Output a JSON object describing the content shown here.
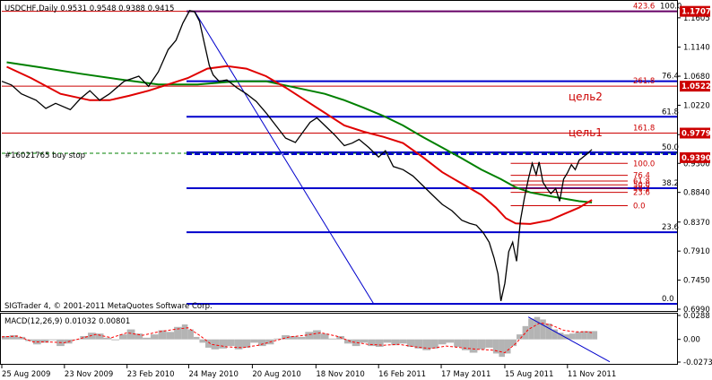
{
  "header": {
    "text": "USDCHF,Daily  0.9531 0.9548 0.9388 0.9415"
  },
  "order_label": "#16021765 buy stop",
  "copyright": "SIGTrader 4, © 2001-2011 MetaQuotes Software Corp.",
  "macd_label": "MACD(12,26,9) 0.01032 0.00801",
  "targets": [
    "цель2",
    "цель1"
  ],
  "colors": {
    "price": "#000000",
    "ma_red": "#e00000",
    "ma_green": "#008000",
    "level_blue": "#0000cc",
    "level_red": "#cc0000",
    "box_red": "#cc0000",
    "hist": "#b4b4b4",
    "signal": "#ff0000",
    "grid": "#000000"
  },
  "chart_data": {
    "type": "line",
    "title": "USDCHF,Daily",
    "ohlc_last": {
      "open": 0.9531,
      "high": 0.9548,
      "low": 0.9388,
      "close": 0.9415
    },
    "x_tick_labels": [
      "25 Aug 2009",
      "23 Nov 2009",
      "23 Feb 2010",
      "24 May 2010",
      "20 Aug 2010",
      "18 Nov 2010",
      "16 Feb 2011",
      "17 May 2011",
      "15 Aug 2011",
      "11 Nov 2011"
    ],
    "price_axis_labels": [
      "1.1605",
      "1.1140",
      "1.0680",
      "1.0220",
      "0.9755",
      "0.9300",
      "0.8840",
      "0.8370",
      "0.7910",
      "0.7450",
      "0.6990"
    ],
    "price_axis_values": [
      1.1605,
      1.114,
      1.068,
      1.022,
      0.9755,
      0.93,
      0.884,
      0.837,
      0.791,
      0.745,
      0.699
    ],
    "ylim": [
      0.699,
      1.183
    ],
    "x_range": [
      0,
      580
    ],
    "x_tick_index": [
      0,
      64,
      128,
      191,
      256,
      321,
      385,
      449,
      514,
      578
    ],
    "price_tags": [
      {
        "value": 1.1707,
        "text": "1.1707"
      },
      {
        "value": 1.0522,
        "text": "1.0522"
      },
      {
        "value": 0.9779,
        "text": "0.9779"
      },
      {
        "value": 0.939,
        "text": "0.9390"
      }
    ],
    "fib_main": {
      "levels": [
        {
          "label": "0.0",
          "value": 0.7075
        },
        {
          "label": "23.6",
          "value": 0.8208
        },
        {
          "label": "38.2",
          "value": 0.8906
        },
        {
          "label": "50.0",
          "value": 0.9473
        },
        {
          "label": "61.8",
          "value": 1.0038
        },
        {
          "label": "76.4",
          "value": 1.06
        },
        {
          "label": "161.8",
          "value": 0.9779
        },
        {
          "label": "261.8",
          "value": 1.0522
        },
        {
          "label": "423.6",
          "value": 1.1707
        },
        {
          "label": "100.0",
          "value": 1.1707
        }
      ]
    },
    "fib_small": {
      "levels": [
        {
          "label": "0.0",
          "value": 0.863
        },
        {
          "label": "23.6",
          "value": 0.884
        },
        {
          "label": "38.2",
          "value": 0.8905
        },
        {
          "label": "50.0",
          "value": 0.896
        },
        {
          "label": "61.8",
          "value": 0.902
        },
        {
          "label": "76.4",
          "value": 0.911
        },
        {
          "label": "100.0",
          "value": 0.93
        }
      ]
    },
    "order_level": 0.946,
    "price_series": [
      [
        0,
        1.06
      ],
      [
        10,
        1.054
      ],
      [
        20,
        1.04
      ],
      [
        35,
        1.03
      ],
      [
        45,
        1.017
      ],
      [
        55,
        1.025
      ],
      [
        70,
        1.015
      ],
      [
        80,
        1.032
      ],
      [
        90,
        1.045
      ],
      [
        100,
        1.03
      ],
      [
        110,
        1.04
      ],
      [
        125,
        1.06
      ],
      [
        140,
        1.068
      ],
      [
        150,
        1.052
      ],
      [
        160,
        1.075
      ],
      [
        170,
        1.11
      ],
      [
        178,
        1.125
      ],
      [
        185,
        1.152
      ],
      [
        192,
        1.172
      ],
      [
        197,
        1.17
      ],
      [
        202,
        1.155
      ],
      [
        207,
        1.12
      ],
      [
        212,
        1.085
      ],
      [
        216,
        1.07
      ],
      [
        222,
        1.06
      ],
      [
        230,
        1.062
      ],
      [
        240,
        1.05
      ],
      [
        250,
        1.04
      ],
      [
        260,
        1.028
      ],
      [
        270,
        1.01
      ],
      [
        280,
        0.99
      ],
      [
        290,
        0.97
      ],
      [
        300,
        0.963
      ],
      [
        308,
        0.98
      ],
      [
        315,
        0.995
      ],
      [
        322,
        1.002
      ],
      [
        330,
        0.99
      ],
      [
        340,
        0.975
      ],
      [
        350,
        0.958
      ],
      [
        358,
        0.962
      ],
      [
        365,
        0.968
      ],
      [
        375,
        0.955
      ],
      [
        385,
        0.94
      ],
      [
        392,
        0.95
      ],
      [
        400,
        0.925
      ],
      [
        410,
        0.92
      ],
      [
        420,
        0.91
      ],
      [
        430,
        0.895
      ],
      [
        440,
        0.88
      ],
      [
        450,
        0.865
      ],
      [
        460,
        0.855
      ],
      [
        470,
        0.84
      ],
      [
        478,
        0.835
      ],
      [
        485,
        0.832
      ],
      [
        492,
        0.82
      ],
      [
        498,
        0.805
      ],
      [
        503,
        0.78
      ],
      [
        507,
        0.755
      ],
      [
        510,
        0.712
      ],
      [
        514,
        0.74
      ],
      [
        518,
        0.79
      ],
      [
        522,
        0.805
      ],
      [
        526,
        0.775
      ],
      [
        530,
        0.84
      ],
      [
        534,
        0.875
      ],
      [
        538,
        0.905
      ],
      [
        542,
        0.93
      ],
      [
        546,
        0.912
      ],
      [
        549,
        0.932
      ],
      [
        553,
        0.9
      ],
      [
        557,
        0.89
      ],
      [
        561,
        0.882
      ],
      [
        566,
        0.89
      ],
      [
        570,
        0.87
      ],
      [
        574,
        0.905
      ],
      [
        578,
        0.915
      ],
      [
        582,
        0.928
      ],
      [
        586,
        0.92
      ],
      [
        590,
        0.935
      ],
      [
        594,
        0.94
      ],
      [
        598,
        0.945
      ],
      [
        603,
        0.952
      ]
    ],
    "ma_red": [
      [
        5,
        1.083
      ],
      [
        30,
        1.065
      ],
      [
        60,
        1.04
      ],
      [
        90,
        1.03
      ],
      [
        110,
        1.03
      ],
      [
        130,
        1.037
      ],
      [
        150,
        1.045
      ],
      [
        170,
        1.055
      ],
      [
        190,
        1.065
      ],
      [
        210,
        1.08
      ],
      [
        230,
        1.084
      ],
      [
        250,
        1.08
      ],
      [
        270,
        1.068
      ],
      [
        290,
        1.05
      ],
      [
        310,
        1.03
      ],
      [
        330,
        1.01
      ],
      [
        350,
        0.99
      ],
      [
        370,
        0.98
      ],
      [
        390,
        0.972
      ],
      [
        410,
        0.962
      ],
      [
        430,
        0.94
      ],
      [
        450,
        0.916
      ],
      [
        470,
        0.898
      ],
      [
        490,
        0.88
      ],
      [
        505,
        0.86
      ],
      [
        515,
        0.843
      ],
      [
        525,
        0.835
      ],
      [
        540,
        0.834
      ],
      [
        560,
        0.84
      ],
      [
        575,
        0.85
      ],
      [
        590,
        0.86
      ],
      [
        603,
        0.872
      ]
    ],
    "ma_green": [
      [
        5,
        1.09
      ],
      [
        40,
        1.082
      ],
      [
        80,
        1.072
      ],
      [
        120,
        1.063
      ],
      [
        160,
        1.055
      ],
      [
        200,
        1.055
      ],
      [
        240,
        1.06
      ],
      [
        270,
        1.06
      ],
      [
        300,
        1.05
      ],
      [
        330,
        1.04
      ],
      [
        350,
        1.03
      ],
      [
        370,
        1.018
      ],
      [
        390,
        1.005
      ],
      [
        410,
        0.99
      ],
      [
        430,
        0.972
      ],
      [
        450,
        0.955
      ],
      [
        470,
        0.938
      ],
      [
        490,
        0.92
      ],
      [
        510,
        0.905
      ],
      [
        525,
        0.892
      ],
      [
        540,
        0.884
      ],
      [
        560,
        0.878
      ],
      [
        575,
        0.874
      ],
      [
        590,
        0.87
      ],
      [
        603,
        0.868
      ]
    ],
    "macd": {
      "ylim": [
        -0.02732,
        0.0288
      ],
      "axis_labels": [
        "0.0288",
        "0.00",
        "-0.02732"
      ],
      "axis_values": [
        0.0288,
        0.0,
        -0.02732
      ],
      "last_macd": 0.01032,
      "last_signal": 0.00801,
      "histogram": [
        [
          0,
          0.004
        ],
        [
          8,
          0.005
        ],
        [
          16,
          0.003
        ],
        [
          24,
          -0.002
        ],
        [
          32,
          -0.006
        ],
        [
          40,
          -0.004
        ],
        [
          48,
          -0.001
        ],
        [
          56,
          -0.008
        ],
        [
          64,
          -0.005
        ],
        [
          72,
          0.0
        ],
        [
          80,
          0.004
        ],
        [
          88,
          0.008
        ],
        [
          96,
          0.007
        ],
        [
          104,
          0.002
        ],
        [
          112,
          -0.001
        ],
        [
          120,
          0.006
        ],
        [
          128,
          0.012
        ],
        [
          136,
          0.007
        ],
        [
          144,
          0.002
        ],
        [
          152,
          0.006
        ],
        [
          160,
          0.011
        ],
        [
          168,
          0.009
        ],
        [
          176,
          0.015
        ],
        [
          184,
          0.018
        ],
        [
          190,
          0.012
        ],
        [
          196,
          0.003
        ],
        [
          202,
          -0.004
        ],
        [
          208,
          -0.01
        ],
        [
          214,
          -0.012
        ],
        [
          222,
          -0.011
        ],
        [
          230,
          -0.008
        ],
        [
          238,
          -0.012
        ],
        [
          246,
          -0.01
        ],
        [
          254,
          -0.004
        ],
        [
          262,
          -0.008
        ],
        [
          270,
          -0.006
        ],
        [
          278,
          0.001
        ],
        [
          286,
          0.005
        ],
        [
          294,
          0.004
        ],
        [
          302,
          0.003
        ],
        [
          310,
          0.009
        ],
        [
          318,
          0.011
        ],
        [
          326,
          0.007
        ],
        [
          334,
          0.001
        ],
        [
          342,
          0.004
        ],
        [
          350,
          -0.005
        ],
        [
          358,
          -0.008
        ],
        [
          366,
          -0.004
        ],
        [
          374,
          -0.008
        ],
        [
          382,
          -0.009
        ],
        [
          390,
          -0.004
        ],
        [
          398,
          -0.007
        ],
        [
          406,
          -0.005
        ],
        [
          414,
          -0.009
        ],
        [
          422,
          -0.011
        ],
        [
          430,
          -0.013
        ],
        [
          438,
          -0.011
        ],
        [
          446,
          -0.006
        ],
        [
          454,
          -0.004
        ],
        [
          462,
          -0.009
        ],
        [
          470,
          -0.013
        ],
        [
          478,
          -0.016
        ],
        [
          486,
          -0.012
        ],
        [
          494,
          -0.01
        ],
        [
          502,
          -0.017
        ],
        [
          508,
          -0.021
        ],
        [
          514,
          -0.017
        ],
        [
          520,
          -0.008
        ],
        [
          526,
          0.006
        ],
        [
          532,
          0.016
        ],
        [
          538,
          0.025
        ],
        [
          544,
          0.027
        ],
        [
          550,
          0.024
        ],
        [
          556,
          0.019
        ],
        [
          562,
          0.012
        ],
        [
          568,
          0.008
        ],
        [
          574,
          0.006
        ],
        [
          580,
          0.007
        ],
        [
          586,
          0.009
        ],
        [
          592,
          0.01
        ],
        [
          598,
          0.01
        ],
        [
          603,
          0.01
        ]
      ],
      "signal": [
        [
          0,
          0.003
        ],
        [
          16,
          0.004
        ],
        [
          32,
          -0.003
        ],
        [
          48,
          -0.003
        ],
        [
          64,
          -0.004
        ],
        [
          80,
          0.001
        ],
        [
          96,
          0.006
        ],
        [
          112,
          0.002
        ],
        [
          128,
          0.008
        ],
        [
          144,
          0.005
        ],
        [
          160,
          0.009
        ],
        [
          176,
          0.012
        ],
        [
          190,
          0.014
        ],
        [
          202,
          0.005
        ],
        [
          214,
          -0.006
        ],
        [
          230,
          -0.009
        ],
        [
          246,
          -0.01
        ],
        [
          262,
          -0.007
        ],
        [
          278,
          -0.002
        ],
        [
          294,
          0.003
        ],
        [
          310,
          0.005
        ],
        [
          326,
          0.008
        ],
        [
          342,
          0.004
        ],
        [
          358,
          -0.003
        ],
        [
          374,
          -0.006
        ],
        [
          390,
          -0.007
        ],
        [
          406,
          -0.006
        ],
        [
          422,
          -0.009
        ],
        [
          438,
          -0.011
        ],
        [
          454,
          -0.008
        ],
        [
          470,
          -0.01
        ],
        [
          486,
          -0.012
        ],
        [
          502,
          -0.013
        ],
        [
          514,
          -0.016
        ],
        [
          526,
          -0.004
        ],
        [
          538,
          0.012
        ],
        [
          550,
          0.02
        ],
        [
          562,
          0.017
        ],
        [
          574,
          0.011
        ],
        [
          586,
          0.009
        ],
        [
          598,
          0.009
        ],
        [
          603,
          0.008
        ]
      ]
    }
  }
}
